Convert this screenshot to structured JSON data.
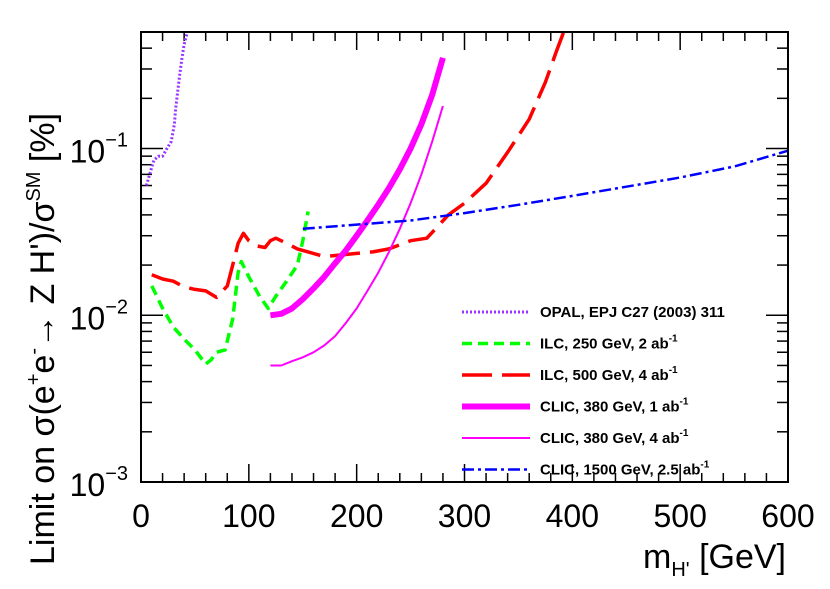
{
  "chart_data": {
    "type": "line",
    "title": "",
    "xlabel": "m<sub>H'</sub> [GeV]",
    "ylabel": "Limit on σ(e<sup>+</sup>e<sup>-</sup>→ Z H')/σ<sup>SM</sup> [%]",
    "x_axis": {
      "min": 0,
      "max": 600,
      "scale": "linear",
      "ticks": [
        0,
        100,
        200,
        300,
        400,
        500,
        600
      ],
      "tick_labels": [
        "0",
        "100",
        "200",
        "300",
        "400",
        "500",
        "600"
      ]
    },
    "y_axis": {
      "min": 0.001,
      "max": 0.5,
      "scale": "log",
      "ticks": [
        0.001,
        0.01,
        0.1
      ],
      "tick_labels": [
        [
          "10",
          "−3"
        ],
        [
          "10",
          "−2"
        ],
        [
          "10",
          "−1"
        ]
      ]
    },
    "grid": false,
    "legend_position": "bottom-right",
    "series": [
      {
        "id": "opal",
        "name": "OPAL, EPJ C27 (2003) 311",
        "name_main": "OPAL, EPJ C27 (2003) 311",
        "name_sup": "",
        "color": "#9933ff",
        "dash": "2,2",
        "width": 3,
        "points": [
          [
            5,
            0.06
          ],
          [
            8,
            0.07
          ],
          [
            12,
            0.085
          ],
          [
            16,
            0.09
          ],
          [
            20,
            0.09
          ],
          [
            24,
            0.1
          ],
          [
            28,
            0.11
          ],
          [
            31,
            0.14
          ],
          [
            32,
            0.17
          ],
          [
            34,
            0.22
          ],
          [
            36,
            0.28
          ],
          [
            38,
            0.35
          ],
          [
            40,
            0.42
          ],
          [
            43,
            0.5
          ]
        ]
      },
      {
        "id": "ilc250",
        "name": "ILC,  250 GeV, 2 ab-1",
        "name_main": "ILC,  250 GeV, 2 ab",
        "name_sup": "-1",
        "color": "#00ff00",
        "dash": "10,6",
        "width": 3.5,
        "points": [
          [
            10,
            0.015
          ],
          [
            20,
            0.011
          ],
          [
            30,
            0.0085
          ],
          [
            40,
            0.0072
          ],
          [
            50,
            0.0062
          ],
          [
            60,
            0.0051
          ],
          [
            65,
            0.0054
          ],
          [
            70,
            0.006
          ],
          [
            78,
            0.0062
          ],
          [
            85,
            0.0095
          ],
          [
            90,
            0.018
          ],
          [
            93,
            0.021
          ],
          [
            100,
            0.017
          ],
          [
            110,
            0.013
          ],
          [
            118,
            0.011
          ],
          [
            125,
            0.013
          ],
          [
            135,
            0.016
          ],
          [
            145,
            0.02
          ],
          [
            150,
            0.028
          ],
          [
            155,
            0.042
          ]
        ]
      },
      {
        "id": "ilc500",
        "name": "ILC,  500 GeV, 4 ab-1",
        "name_main": "ILC,  500 GeV, 4 ab",
        "name_sup": "-1",
        "color": "#ff0000",
        "dash": "30,10",
        "width": 3.5,
        "points": [
          [
            10,
            0.0175
          ],
          [
            20,
            0.0165
          ],
          [
            30,
            0.016
          ],
          [
            40,
            0.0148
          ],
          [
            50,
            0.0143
          ],
          [
            60,
            0.014
          ],
          [
            70,
            0.0128
          ],
          [
            80,
            0.015
          ],
          [
            85,
            0.02
          ],
          [
            90,
            0.027
          ],
          [
            95,
            0.031
          ],
          [
            100,
            0.028
          ],
          [
            108,
            0.026
          ],
          [
            115,
            0.0255
          ],
          [
            120,
            0.028
          ],
          [
            125,
            0.029
          ],
          [
            135,
            0.027
          ],
          [
            145,
            0.025
          ],
          [
            155,
            0.024
          ],
          [
            170,
            0.0225
          ],
          [
            185,
            0.023
          ],
          [
            200,
            0.0235
          ],
          [
            215,
            0.024
          ],
          [
            230,
            0.025
          ],
          [
            250,
            0.028
          ],
          [
            265,
            0.029
          ],
          [
            275,
            0.034
          ],
          [
            285,
            0.04
          ],
          [
            300,
            0.047
          ],
          [
            320,
            0.062
          ],
          [
            340,
            0.095
          ],
          [
            360,
            0.15
          ],
          [
            375,
            0.25
          ],
          [
            385,
            0.38
          ],
          [
            392,
            0.5
          ]
        ]
      },
      {
        "id": "clic380_1",
        "name": "CLIC,  380 GeV, 1 ab-1",
        "name_main": "CLIC,  380 GeV, 1 ab",
        "name_sup": "-1",
        "color": "#ff00ff",
        "dash": "",
        "width": 6,
        "points": [
          [
            120,
            0.01
          ],
          [
            130,
            0.0102
          ],
          [
            140,
            0.011
          ],
          [
            150,
            0.0125
          ],
          [
            160,
            0.0145
          ],
          [
            170,
            0.017
          ],
          [
            180,
            0.0205
          ],
          [
            190,
            0.0245
          ],
          [
            200,
            0.03
          ],
          [
            210,
            0.037
          ],
          [
            220,
            0.046
          ],
          [
            230,
            0.058
          ],
          [
            240,
            0.075
          ],
          [
            250,
            0.1
          ],
          [
            260,
            0.14
          ],
          [
            270,
            0.21
          ],
          [
            280,
            0.35
          ]
        ]
      },
      {
        "id": "clic380_4",
        "name": "CLIC,  380 GeV, 4 ab-1",
        "name_main": "CLIC,  380 GeV, 4 ab",
        "name_sup": "-1",
        "color": "#ff00ff",
        "dash": "",
        "width": 2,
        "points": [
          [
            120,
            0.005
          ],
          [
            130,
            0.005
          ],
          [
            140,
            0.0053
          ],
          [
            150,
            0.0056
          ],
          [
            160,
            0.006
          ],
          [
            170,
            0.0066
          ],
          [
            180,
            0.0075
          ],
          [
            190,
            0.009
          ],
          [
            200,
            0.011
          ],
          [
            210,
            0.014
          ],
          [
            220,
            0.018
          ],
          [
            230,
            0.024
          ],
          [
            240,
            0.033
          ],
          [
            250,
            0.047
          ],
          [
            260,
            0.07
          ],
          [
            270,
            0.11
          ],
          [
            280,
            0.18
          ]
        ]
      },
      {
        "id": "clic1500",
        "name": "CLIC, 1500 GeV, 2.5 ab-1",
        "name_main": "CLIC, 1500 GeV, 2.5 ab",
        "name_sup": "-1",
        "color": "#0000ff",
        "dash": "12,4,3,4",
        "width": 2.5,
        "points": [
          [
            150,
            0.033
          ],
          [
            200,
            0.035
          ],
          [
            250,
            0.037
          ],
          [
            300,
            0.041
          ],
          [
            350,
            0.046
          ],
          [
            400,
            0.052
          ],
          [
            450,
            0.059
          ],
          [
            500,
            0.067
          ],
          [
            550,
            0.078
          ],
          [
            600,
            0.097
          ]
        ]
      }
    ]
  }
}
